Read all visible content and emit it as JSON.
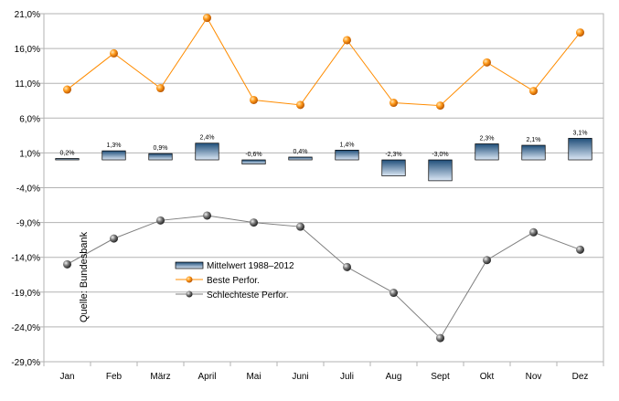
{
  "chart_data": {
    "type": "line",
    "categories": [
      "Jan",
      "Feb",
      "März",
      "April",
      "Mai",
      "Juni",
      "Juli",
      "Aug",
      "Sept",
      "Okt",
      "Nov",
      "Dez"
    ],
    "y_ticks": [
      "21,0%",
      "16,0%",
      "11,0%",
      "6,0%",
      "1,0%",
      "-4,0%",
      "-9,0%",
      "-14,0%",
      "-19,0%",
      "-24,0%",
      "-29,0%"
    ],
    "ylim": [
      -29,
      21
    ],
    "grid": true,
    "legend_position": "center-left",
    "source_note": "Quelle: Bundesbank",
    "series": [
      {
        "name": "Mittelwert 1988–2012",
        "kind": "bar",
        "values": [
          0.2,
          1.3,
          0.9,
          2.4,
          -0.6,
          0.4,
          1.4,
          -2.3,
          -3.0,
          2.3,
          2.1,
          3.1
        ],
        "labels": [
          "0,2%",
          "1,3%",
          "0,9%",
          "2,4%",
          "-0,6%",
          "0,4%",
          "1,4%",
          "-2,3%",
          "-3,0%",
          "2,3%",
          "2,1%",
          "3,1%"
        ],
        "color": "#1f4e79"
      },
      {
        "name": "Beste Perfor.",
        "kind": "line",
        "values": [
          10.1,
          15.3,
          10.3,
          20.4,
          8.6,
          7.9,
          17.2,
          8.2,
          7.8,
          14.0,
          9.9,
          18.3
        ],
        "color": "#ff8c00"
      },
      {
        "name": "Schlechteste Perfor.",
        "kind": "line",
        "values": [
          -15.0,
          -11.3,
          -8.7,
          -8.0,
          -9.0,
          -9.6,
          -15.4,
          -19.1,
          -25.6,
          -14.4,
          -10.4,
          -12.9
        ],
        "color": "#7f7f7f"
      }
    ]
  }
}
